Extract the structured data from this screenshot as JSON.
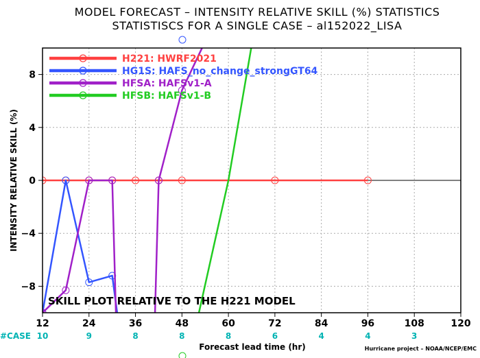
{
  "title_line1": "MODEL FORECAST – INTENSITY RELATIVE SKILL (%) STATISTICS",
  "title_line2": "STATISTISCS FOR A SINGLE CASE – al152022_LISA",
  "annotation": "SKILL PLOT RELATIVE TO THE H221 MODEL",
  "credit": "Hurricane project – NOAA/NCEP/EMC",
  "case_label": "#CASE",
  "colors": {
    "H221": "#ff4040",
    "HG1S": "#3355ff",
    "HFSA": "#a020c8",
    "HFSB": "#22cc22",
    "cases": "#00b3b3",
    "grid": "#aaaaaa"
  },
  "chart_data": {
    "type": "line",
    "xlabel": "Forecast lead time (hr)",
    "ylabel": "INTENSITY RELATIVE SKILL (%)",
    "xlim": [
      12,
      120
    ],
    "ylim": [
      -10,
      10
    ],
    "xticks": [
      12,
      24,
      36,
      48,
      60,
      72,
      84,
      96,
      108,
      120
    ],
    "yticks": [
      -8,
      -4,
      0,
      4,
      8
    ],
    "grid": true,
    "legend_position": "top-left",
    "case_counts": [
      {
        "x": 12,
        "n": "10"
      },
      {
        "x": 24,
        "n": "9"
      },
      {
        "x": 36,
        "n": "8"
      },
      {
        "x": 48,
        "n": "8"
      },
      {
        "x": 60,
        "n": "8"
      },
      {
        "x": 72,
        "n": "6"
      },
      {
        "x": 84,
        "n": "4"
      },
      {
        "x": 96,
        "n": "4"
      },
      {
        "x": 108,
        "n": "3"
      }
    ],
    "series": [
      {
        "key": "H221",
        "name": "H221: HWRF2021",
        "x": [
          12,
          18,
          24,
          30,
          36,
          42,
          48,
          72,
          96
        ],
        "y": [
          0,
          0,
          0,
          0,
          0,
          0,
          0,
          0,
          0
        ]
      },
      {
        "key": "HG1S",
        "name": "HG1S: HAFS_no_change_strongGT64",
        "x": [
          12,
          18,
          24,
          30,
          31.5
        ],
        "y": [
          -10,
          0,
          -7.7,
          -7.2,
          -10.5
        ]
      },
      {
        "key": "HFSA",
        "name": "HFSA: HAFSv1-A",
        "x": [
          12,
          18,
          24,
          30,
          31,
          41,
          42,
          48,
          54
        ],
        "y": [
          -10,
          -8.3,
          0,
          0,
          -10.5,
          -10.5,
          0,
          6.8,
          10.5
        ]
      },
      {
        "key": "HFSB",
        "name": "HFSB: HAFSv1-B",
        "x": [
          52,
          60,
          66
        ],
        "y": [
          -10.5,
          0,
          10.2
        ]
      }
    ]
  }
}
